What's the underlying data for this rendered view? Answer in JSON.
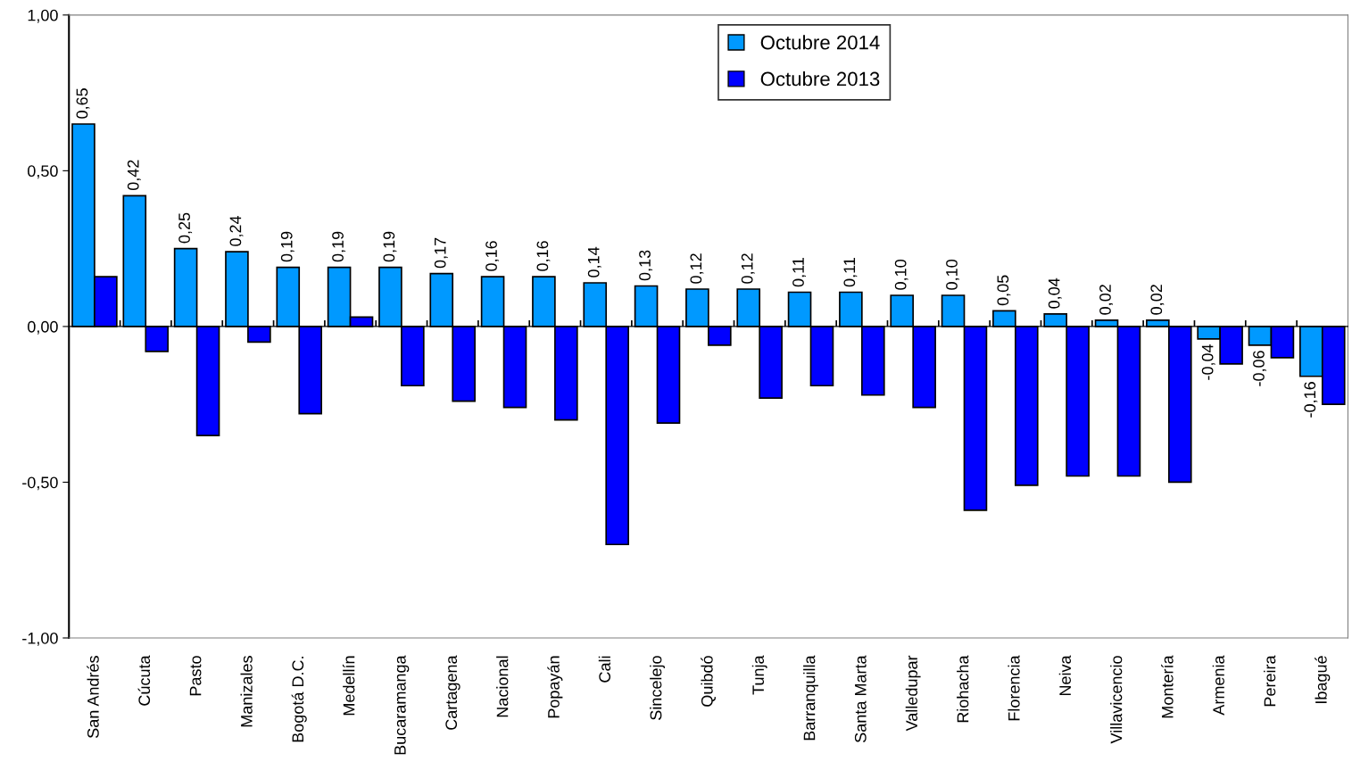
{
  "chart_data": {
    "type": "bar",
    "categories": [
      "San Andrés",
      "Cúcuta",
      "Pasto",
      "Manizales",
      "Bogotá D.C.",
      "Medellín",
      "Bucaramanga",
      "Cartagena",
      "Nacional",
      "Popayán",
      "Cali",
      "Sincelejo",
      "Quibdó",
      "Tunja",
      "Barranquilla",
      "Santa Marta",
      "Valledupar",
      "Riohacha",
      "Florencia",
      "Neiva",
      "Villavicencio",
      "Montería",
      "Armenia",
      "Pereira",
      "Ibagué"
    ],
    "series": [
      {
        "name": "Octubre 2014",
        "color": "#0099ff",
        "values": [
          0.65,
          0.42,
          0.25,
          0.24,
          0.19,
          0.19,
          0.19,
          0.17,
          0.16,
          0.16,
          0.14,
          0.13,
          0.12,
          0.12,
          0.11,
          0.11,
          0.1,
          0.1,
          0.05,
          0.04,
          0.02,
          0.02,
          -0.04,
          -0.06,
          -0.16
        ],
        "value_labels": [
          "0,65",
          "0,42",
          "0,25",
          "0,24",
          "0,19",
          "0,19",
          "0,19",
          "0,17",
          "0,16",
          "0,16",
          "0,14",
          "0,13",
          "0,12",
          "0,12",
          "0,11",
          "0,11",
          "0,10",
          "0,10",
          "0,05",
          "0,04",
          "0,02",
          "0,02",
          "-0,04",
          "-0,06",
          "-0,16"
        ]
      },
      {
        "name": "Octubre 2013",
        "color": "#0000ff",
        "values": [
          0.16,
          -0.08,
          -0.35,
          -0.05,
          -0.28,
          0.03,
          -0.19,
          -0.24,
          -0.26,
          -0.3,
          -0.7,
          -0.31,
          -0.06,
          -0.23,
          -0.19,
          -0.22,
          -0.26,
          -0.59,
          -0.51,
          -0.48,
          -0.48,
          -0.5,
          -0.12,
          -0.1,
          -0.25
        ]
      }
    ],
    "ylim": [
      -1.0,
      1.0
    ],
    "yticks": [
      {
        "value": -1.0,
        "label": "-1,00"
      },
      {
        "value": -0.5,
        "label": "-0,50"
      },
      {
        "value": 0.0,
        "label": "0,00"
      },
      {
        "value": 0.5,
        "label": "0,50"
      },
      {
        "value": 1.0,
        "label": "1,00"
      }
    ],
    "legend": "top"
  }
}
